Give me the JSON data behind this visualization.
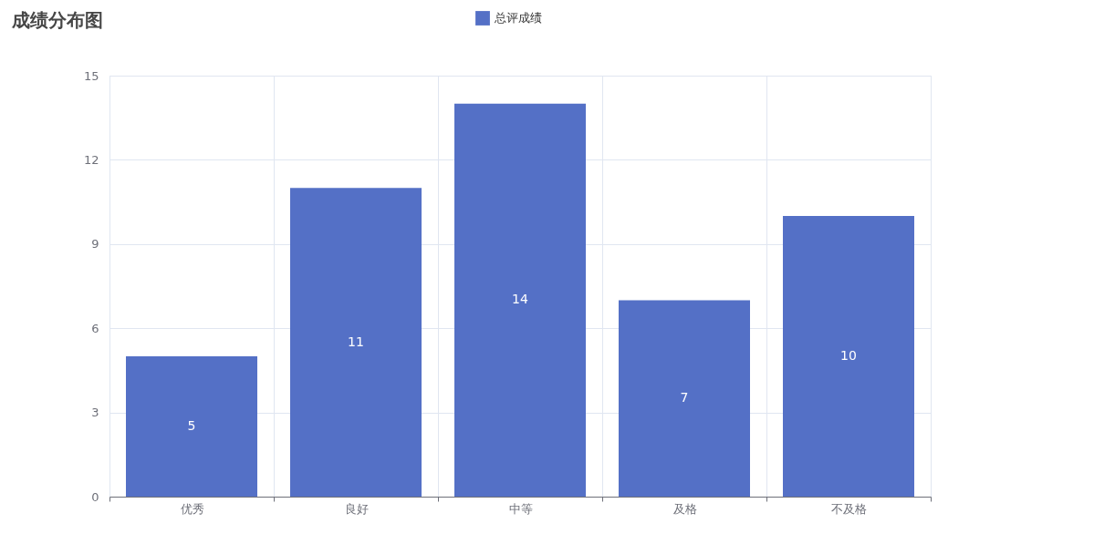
{
  "chart_data": {
    "type": "bar",
    "title": "成绩分布图",
    "categories": [
      "优秀",
      "良好",
      "中等",
      "及格",
      "不及格"
    ],
    "series": [
      {
        "name": "总评成绩",
        "color": "#5470c6",
        "values": [
          5,
          11,
          14,
          7,
          10
        ]
      }
    ],
    "ylim": [
      0,
      15
    ],
    "yticks": [
      0,
      3,
      6,
      9,
      12,
      15
    ],
    "grid": true,
    "legend": "top",
    "data_labels": true
  }
}
